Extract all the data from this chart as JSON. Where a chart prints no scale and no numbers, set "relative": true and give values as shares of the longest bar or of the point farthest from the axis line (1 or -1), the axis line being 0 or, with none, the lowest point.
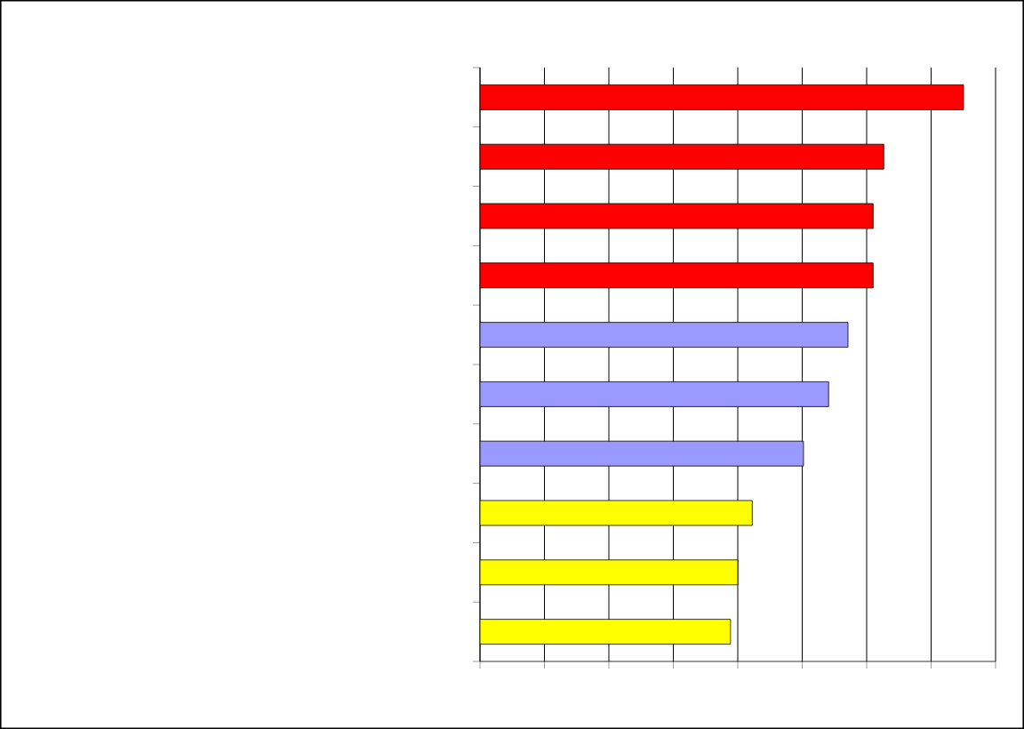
{
  "chart_data": {
    "type": "bar",
    "orientation": "horizontal",
    "relative": true,
    "grid": "x",
    "categories": [
      null,
      null,
      null,
      null,
      null,
      null,
      null,
      null,
      null,
      null
    ],
    "values": [
      1,
      0.835,
      0.813,
      0.813,
      0.761,
      0.721,
      0.669,
      0.563,
      0.533,
      0.518
    ],
    "colors": [
      "#ff0000",
      "#ff0000",
      "#ff0000",
      "#ff0000",
      "#9999ff",
      "#9999ff",
      "#9999ff",
      "#ffff00",
      "#ffff00",
      "#ffff00"
    ]
  }
}
